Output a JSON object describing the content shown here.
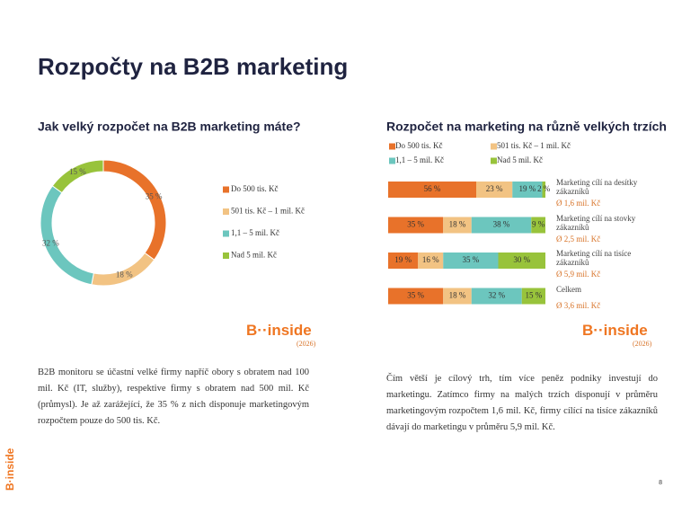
{
  "title": "Rozpočty na B2B marketing",
  "chart_data": [
    {
      "type": "donut",
      "title": "Jak velký rozpočet na B2B marketing máte?",
      "categories": [
        "Do 500 tis. Kč",
        "501 tis. Kč – 1 mil. Kč",
        "1,1 – 5 mil. Kč",
        "Nad 5 mil. Kč"
      ],
      "values": [
        35,
        18,
        32,
        15
      ],
      "value_labels": [
        "35 %",
        "18 %",
        "32 %",
        "15 %"
      ],
      "colors": [
        "#e8722a",
        "#f2c383",
        "#6cc6be",
        "#98c33b"
      ],
      "legend": "right"
    },
    {
      "type": "stacked-bar-horizontal",
      "title": "Rozpočet na marketing na různě velkých trzích",
      "categories": [
        "Marketing cílí na desítky zákazníků",
        "Marketing cílí na stovky zákazníků",
        "Marketing cílí na tisíce zákazníků",
        "Celkem"
      ],
      "category_notes": [
        "Ø 1,6 mil. Kč",
        "Ø 2,5 mil. Kč",
        "Ø 5,9 mil. Kč",
        "Ø 3,6 mil. Kč"
      ],
      "xlim": [
        0,
        100
      ],
      "legend": "top",
      "series": [
        {
          "name": "Do 500 tis. Kč",
          "color": "#e8722a",
          "values": [
            56,
            35,
            19,
            35
          ],
          "value_labels": [
            "56 %",
            "35 %",
            "19 %",
            "35 %"
          ]
        },
        {
          "name": "501 tis. Kč – 1 mil. Kč",
          "color": "#f2c383",
          "values": [
            23,
            18,
            16,
            18
          ],
          "value_labels": [
            "23 %",
            "18 %",
            "16 %",
            "18 %"
          ]
        },
        {
          "name": "1,1 – 5 mil. Kč",
          "color": "#6cc6be",
          "values": [
            19,
            38,
            35,
            32
          ],
          "value_labels": [
            "19 %",
            "38 %",
            "35 %",
            "32 %"
          ]
        },
        {
          "name": "Nad 5 mil. Kč",
          "color": "#98c33b",
          "values": [
            2,
            9,
            30,
            15
          ],
          "value_labels": [
            "2 %",
            "9 %",
            "30 %",
            "15 %"
          ]
        }
      ]
    }
  ],
  "logos": [
    {
      "brand": "B··inside",
      "year": "(2026)"
    },
    {
      "brand": "B··inside",
      "year": "(2026)"
    }
  ],
  "paragraphs": [
    "B2B monitoru se účastní velké firmy napříč obory s obratem nad 100 mil. Kč (IT, služby), respektive firmy s obratem nad 500 mil. Kč (průmysl). Je až zarážející, že 35 % z nich disponuje marketingovým rozpočtem pouze do 500 tis. Kč.",
    "Čím větší je cílový trh, tím více peněz podniky investují do marketingu. Zatímco firmy na malých trzích disponují v průměru marketingovým rozpočtem 1,6 mil. Kč, firmy cílící na tisíce zákazníků dávají do marketingu v průměru 5,9 mil. Kč."
  ],
  "side_logo": "B·inside",
  "page_number": "8"
}
